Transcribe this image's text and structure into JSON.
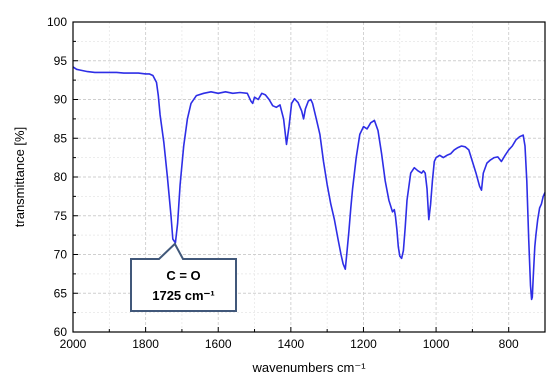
{
  "chart_data": {
    "type": "line",
    "title": "",
    "xlabel": "wavenumbers cm⁻¹",
    "ylabel": "transmittance [%]",
    "xlim": [
      2000,
      700
    ],
    "ylim": [
      60,
      100
    ],
    "x_reversed": true,
    "grid": true,
    "x_ticks": [
      "2000",
      "1800",
      "1600",
      "1400",
      "1200",
      "1000",
      "800"
    ],
    "y_ticks": [
      "60",
      "65",
      "70",
      "75",
      "80",
      "85",
      "90",
      "95",
      "100"
    ],
    "series": [
      {
        "color": "#2e2ee6",
        "x": [
          2000,
          1990,
          1980,
          1960,
          1940,
          1920,
          1900,
          1880,
          1860,
          1840,
          1820,
          1800,
          1790,
          1780,
          1770,
          1765,
          1760,
          1750,
          1740,
          1730,
          1725,
          1718,
          1712,
          1705,
          1695,
          1685,
          1675,
          1660,
          1640,
          1620,
          1600,
          1580,
          1560,
          1540,
          1520,
          1510,
          1505,
          1500,
          1490,
          1480,
          1470,
          1460,
          1450,
          1440,
          1430,
          1420,
          1412,
          1405,
          1398,
          1390,
          1380,
          1370,
          1365,
          1360,
          1352,
          1345,
          1340,
          1330,
          1320,
          1310,
          1300,
          1290,
          1280,
          1270,
          1262,
          1256,
          1250,
          1245,
          1240,
          1235,
          1230,
          1225,
          1220,
          1210,
          1200,
          1190,
          1180,
          1170,
          1160,
          1150,
          1140,
          1130,
          1120,
          1115,
          1112,
          1108,
          1104,
          1100,
          1095,
          1090,
          1085,
          1080,
          1070,
          1060,
          1050,
          1040,
          1035,
          1030,
          1025,
          1020,
          1015,
          1010,
          1005,
          1000,
          990,
          980,
          970,
          960,
          950,
          940,
          930,
          920,
          910,
          900,
          890,
          880,
          875,
          870,
          860,
          850,
          840,
          830,
          820,
          810,
          800,
          790,
          780,
          770,
          760,
          755,
          750,
          745,
          740,
          737,
          735,
          732,
          728,
          725,
          720,
          715,
          710,
          705,
          700
        ],
        "y": [
          94.2,
          93.9,
          93.8,
          93.6,
          93.5,
          93.5,
          93.5,
          93.5,
          93.4,
          93.4,
          93.4,
          93.3,
          93.3,
          93.1,
          92.2,
          90.5,
          88.0,
          84.5,
          80.0,
          75.0,
          72.0,
          71.5,
          74.0,
          79.0,
          84.0,
          87.5,
          89.5,
          90.5,
          90.8,
          91.0,
          90.8,
          91.0,
          90.8,
          90.9,
          90.8,
          89.8,
          89.5,
          90.3,
          90.0,
          90.8,
          90.6,
          90.0,
          89.2,
          89.0,
          89.3,
          87.5,
          84.2,
          86.5,
          89.5,
          90.1,
          89.6,
          88.5,
          87.5,
          88.8,
          89.8,
          90.0,
          89.5,
          87.5,
          85.5,
          82.0,
          79.0,
          76.5,
          74.5,
          72.0,
          70.0,
          68.8,
          68.1,
          70.5,
          73.0,
          76.0,
          78.5,
          80.5,
          82.5,
          85.5,
          86.5,
          86.2,
          87.0,
          87.3,
          86.0,
          83.0,
          79.5,
          77.0,
          75.5,
          75.8,
          75.0,
          73.2,
          71.0,
          69.8,
          69.5,
          70.5,
          73.5,
          77.0,
          80.5,
          81.2,
          80.8,
          80.5,
          80.8,
          80.5,
          78.5,
          74.5,
          76.5,
          79.5,
          82.0,
          82.5,
          82.8,
          82.5,
          82.8,
          83.0,
          83.5,
          83.8,
          84.0,
          83.9,
          83.5,
          82.0,
          80.5,
          78.8,
          78.3,
          80.5,
          81.8,
          82.2,
          82.5,
          82.6,
          82.0,
          82.8,
          83.5,
          84.0,
          84.8,
          85.2,
          85.4,
          84.0,
          79.5,
          72.0,
          66.0,
          64.2,
          64.5,
          67.5,
          71.0,
          72.5,
          74.5,
          76.0,
          76.5,
          77.5,
          78.0
        ]
      }
    ],
    "annotations": [
      {
        "lines": [
          "C = O",
          "1725 cm⁻¹"
        ],
        "points_to_x": 1725,
        "points_to_y": 71.5
      }
    ]
  }
}
